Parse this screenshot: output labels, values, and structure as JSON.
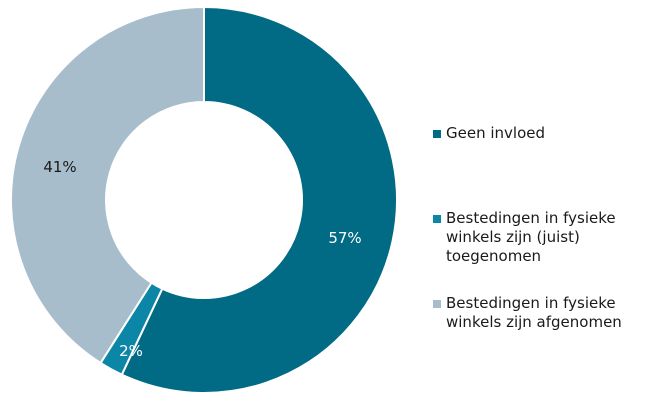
{
  "colors": {
    "geen_invloed": "#016a85",
    "toegenomen": "#0c86a6",
    "afgenomen": "#a7bdcb",
    "slice_border": "#ffffff",
    "label_dark": "#1a1a1a",
    "label_light": "#ffffff"
  },
  "chart_data": {
    "type": "pie",
    "variant": "donut",
    "title": "",
    "start_angle_deg": 0,
    "direction": "clockwise",
    "legend_position": "right",
    "series": [
      {
        "name": "Geen invloed",
        "value": 57,
        "label": "57%",
        "color": "#016a85",
        "label_color": "#ffffff"
      },
      {
        "name": "Bestedingen in fysieke winkels zijn (juist) toegenomen",
        "value": 2,
        "label": "2%",
        "color": "#0c86a6",
        "label_color": "#ffffff"
      },
      {
        "name": "Bestedingen in fysieke winkels zijn afgenomen",
        "value": 41,
        "label": "41%",
        "color": "#a7bdcb",
        "label_color": "#1a1a1a"
      }
    ],
    "legend": [
      {
        "text": "Geen invloed",
        "color": "#016a85"
      },
      {
        "text": "Bestedingen in fysieke\nwinkels zijn (juist)\ntoegenomen",
        "color": "#0c86a6"
      },
      {
        "text": "Bestedingen in fysieke\nwinkels zijn afgenomen",
        "color": "#a7bdcb"
      }
    ]
  }
}
